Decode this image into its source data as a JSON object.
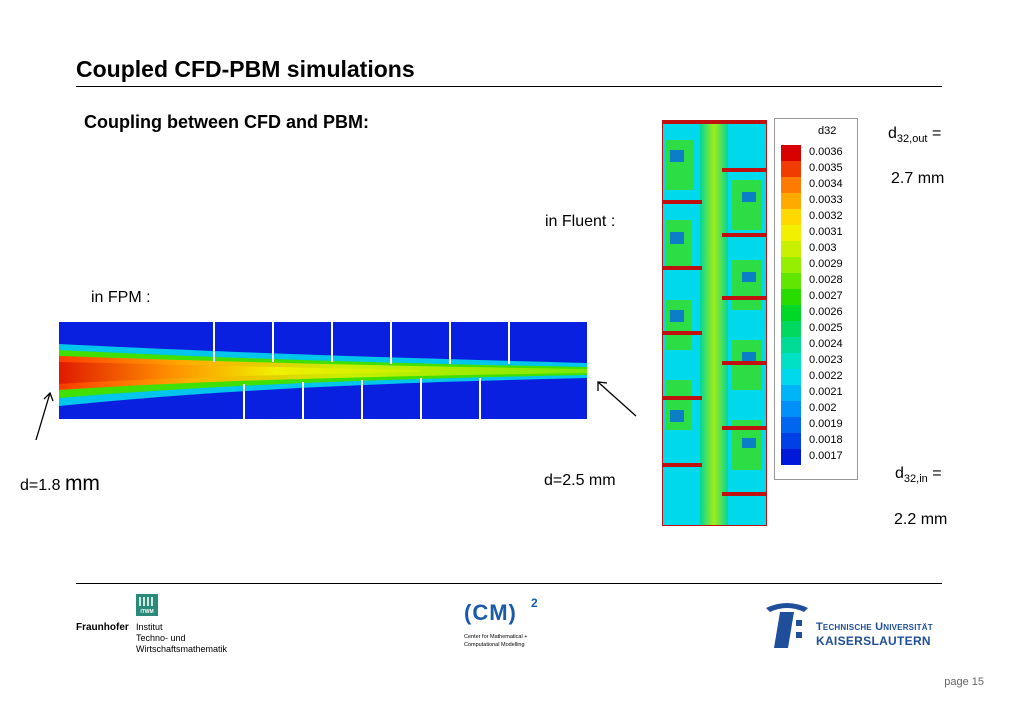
{
  "slide": {
    "title": "Coupled CFD-PBM simulations",
    "subtitle": "Coupling between CFD and PBM:",
    "fpm_label": "in FPM :",
    "fluent_label": "in Fluent :",
    "d_left_prefix": "d=1.8 ",
    "d_left_unit": "mm",
    "d_right": "d=2.5 mm",
    "d32_out": {
      "symbol": "d",
      "subscript": "32,out",
      "suffix": " =",
      "value": "2.7 mm"
    },
    "d32_in": {
      "symbol": "d",
      "subscript": "32,in",
      "suffix": " =",
      "value": "2.2 mm"
    },
    "page": "page 15"
  },
  "legend": {
    "title": "d32",
    "entries": [
      {
        "label": "0.0036",
        "color": "#d90000"
      },
      {
        "label": "0.0035",
        "color": "#f03c00"
      },
      {
        "label": "0.0034",
        "color": "#ff7a00"
      },
      {
        "label": "0.0033",
        "color": "#ffaa00"
      },
      {
        "label": "0.0032",
        "color": "#ffd800"
      },
      {
        "label": "0.0031",
        "color": "#f0f000"
      },
      {
        "label": "0.003",
        "color": "#c8f000"
      },
      {
        "label": "0.0029",
        "color": "#96ee00"
      },
      {
        "label": "0.0028",
        "color": "#60e600"
      },
      {
        "label": "0.0027",
        "color": "#28dc00"
      },
      {
        "label": "0.0026",
        "color": "#00d828"
      },
      {
        "label": "0.0025",
        "color": "#00d860"
      },
      {
        "label": "0.0024",
        "color": "#00dc96"
      },
      {
        "label": "0.0023",
        "color": "#00e0c4"
      },
      {
        "label": "0.0022",
        "color": "#00d8ec"
      },
      {
        "label": "0.0021",
        "color": "#00b4f8"
      },
      {
        "label": "0.002",
        "color": "#0090f8"
      },
      {
        "label": "0.0019",
        "color": "#0066f0"
      },
      {
        "label": "0.0018",
        "color": "#0040e6"
      },
      {
        "label": "0.0017",
        "color": "#0018d8"
      }
    ]
  },
  "logos": {
    "fraunhofer": {
      "name": "Fraunhofer",
      "badge": "ITWM",
      "lines": [
        "Institut",
        "Techno- und",
        "Wirtschaftsmathematik"
      ]
    },
    "cm2": {
      "mark": "(CM)",
      "sup": "2",
      "lines": [
        "Center for Mathematical +",
        "Computational Modelling"
      ]
    },
    "tu": {
      "line1": "Technische Universität",
      "line2": "Kaiserslautern"
    }
  },
  "colors": {
    "field_blue": "#0a20e0",
    "cyan": "#00d8ec",
    "green": "#40e000",
    "yellow": "#f0f000",
    "red": "#e02000",
    "baffle_red": "#c01010",
    "tu_blue": "#1f4f9b"
  }
}
